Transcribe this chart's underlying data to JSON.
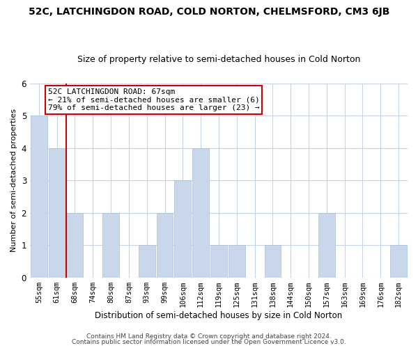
{
  "title": "52C, LATCHINGDON ROAD, COLD NORTON, CHELMSFORD, CM3 6JB",
  "subtitle": "Size of property relative to semi-detached houses in Cold Norton",
  "bar_labels": [
    "55sqm",
    "61sqm",
    "68sqm",
    "74sqm",
    "80sqm",
    "87sqm",
    "93sqm",
    "99sqm",
    "106sqm",
    "112sqm",
    "119sqm",
    "125sqm",
    "131sqm",
    "138sqm",
    "144sqm",
    "150sqm",
    "157sqm",
    "163sqm",
    "169sqm",
    "176sqm",
    "182sqm"
  ],
  "bar_values": [
    5,
    4,
    2,
    0,
    2,
    0,
    1,
    2,
    3,
    4,
    1,
    1,
    0,
    1,
    0,
    0,
    2,
    0,
    0,
    0,
    1
  ],
  "bar_color": "#c8d8ea",
  "bar_edge_color": "#aabfd4",
  "property_line_index": 1.5,
  "annotation_text_line1": "52C LATCHINGDON ROAD: 67sqm",
  "annotation_text_line2": "← 21% of semi-detached houses are smaller (6)",
  "annotation_text_line3": "79% of semi-detached houses are larger (23) →",
  "xlabel": "Distribution of semi-detached houses by size in Cold Norton",
  "ylabel": "Number of semi-detached properties",
  "ylim": [
    0,
    6
  ],
  "yticks": [
    0,
    1,
    2,
    3,
    4,
    5,
    6
  ],
  "footer1": "Contains HM Land Registry data © Crown copyright and database right 2024.",
  "footer2": "Contains public sector information licensed under the Open Government Licence v3.0.",
  "background_color": "#ffffff",
  "grid_color": "#c5d5e5",
  "annotation_box_edge_color": "#cc0000",
  "property_line_color": "#cc0000",
  "title_fontsize": 10,
  "subtitle_fontsize": 9,
  "ylabel_fontsize": 8,
  "xlabel_fontsize": 8.5,
  "tick_fontsize": 7.5,
  "annotation_fontsize": 8,
  "footer_fontsize": 6.5
}
